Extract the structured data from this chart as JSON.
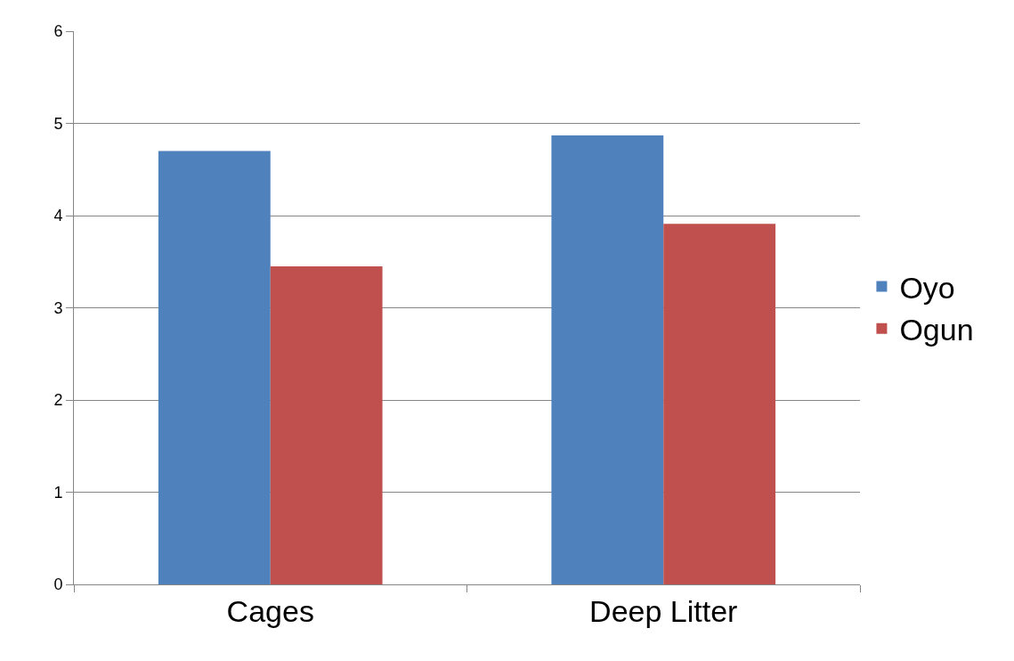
{
  "chart_data": {
    "type": "bar",
    "categories": [
      "Cages",
      "Deep Litter"
    ],
    "series": [
      {
        "name": "Oyo",
        "color": "#4f81bd",
        "values": [
          4.7,
          4.87
        ]
      },
      {
        "name": "Ogun",
        "color": "#c0504d",
        "values": [
          3.45,
          3.91
        ]
      }
    ],
    "ylim": [
      0,
      6
    ],
    "yticks": [
      0,
      1,
      2,
      3,
      4,
      5,
      6
    ],
    "grid": "y",
    "legend": "right"
  }
}
